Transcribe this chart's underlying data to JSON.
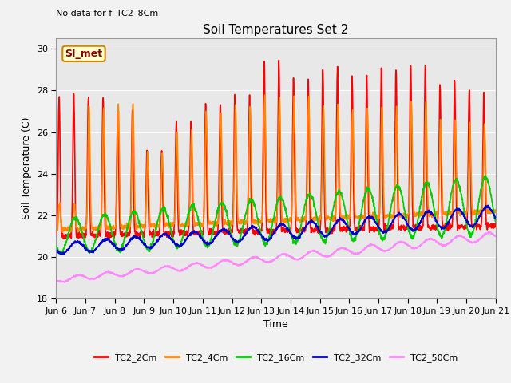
{
  "title": "Soil Temperatures Set 2",
  "subtitle": "No data for f_TC2_8Cm",
  "xlabel": "Time",
  "ylabel": "Soil Temperature (C)",
  "ylim": [
    18,
    30.5
  ],
  "yticks": [
    18,
    20,
    22,
    24,
    26,
    28,
    30
  ],
  "bg_color": "#e8e8e8",
  "fig_color": "#f2f2f2",
  "annotation_text": "SI_met",
  "annotation_bg": "#ffffcc",
  "annotation_border": "#cc8800",
  "annotation_text_color": "#880000",
  "xtick_labels": [
    "Jun 6",
    "Jun 7",
    "Jun 8",
    "Jun 9",
    "Jun 10",
    "Jun 11",
    "Jun 12",
    "Jun 13",
    "Jun 14",
    "Jun 15",
    "Jun 16",
    "Jun 17",
    "Jun 18",
    "Jun 19",
    "Jun 20",
    "Jun 21"
  ],
  "series": [
    {
      "label": "TC2_2Cm",
      "color": "#ff0000",
      "lw": 1.2
    },
    {
      "label": "TC2_4Cm",
      "color": "#ff8800",
      "lw": 1.2
    },
    {
      "label": "TC2_16Cm",
      "color": "#00cc00",
      "lw": 1.2
    },
    {
      "label": "TC2_32Cm",
      "color": "#0000cc",
      "lw": 1.2
    },
    {
      "label": "TC2_50Cm",
      "color": "#ff88ff",
      "lw": 1.2
    }
  ]
}
